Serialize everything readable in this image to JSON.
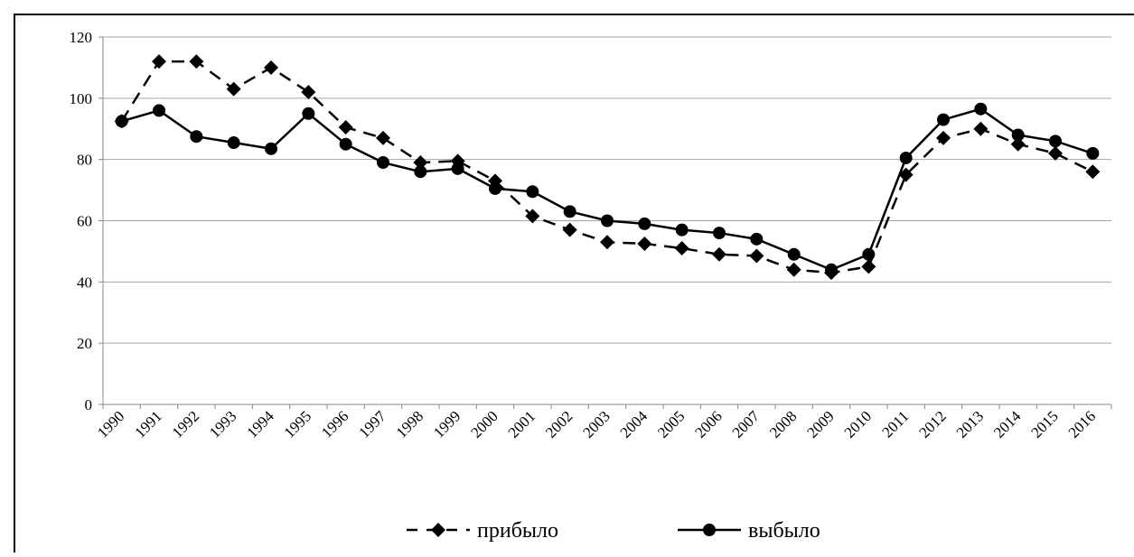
{
  "chart_data": {
    "type": "line",
    "categories": [
      "1990",
      "1991",
      "1992",
      "1993",
      "1994",
      "1995",
      "1996",
      "1997",
      "1998",
      "1999",
      "2000",
      "2001",
      "2002",
      "2003",
      "2004",
      "2005",
      "2006",
      "2007",
      "2008",
      "2009",
      "2010",
      "2011",
      "2012",
      "2013",
      "2014",
      "2015",
      "2016"
    ],
    "series": [
      {
        "name": "прибыло",
        "color": "#000000",
        "line_style": "dashed",
        "marker": "diamond",
        "values": [
          92.5,
          112,
          112,
          103,
          110,
          102,
          90.5,
          87,
          79,
          79.5,
          73,
          61.5,
          57,
          53,
          52.5,
          51,
          49,
          48.5,
          44,
          43,
          45,
          75,
          87,
          90,
          85,
          82,
          76
        ]
      },
      {
        "name": "выбыло",
        "color": "#000000",
        "line_style": "solid",
        "marker": "circle",
        "values": [
          92.5,
          96,
          87.5,
          85.5,
          83.5,
          95,
          85,
          79,
          76,
          77,
          70.5,
          69.5,
          63,
          60,
          59,
          57,
          56,
          54,
          49,
          44,
          49,
          80.5,
          93,
          96.5,
          88,
          86,
          82
        ]
      }
    ],
    "ylim": [
      0,
      120
    ],
    "yticks": [
      0,
      20,
      40,
      60,
      80,
      100,
      120
    ],
    "grid": true,
    "legend": "bottom"
  }
}
